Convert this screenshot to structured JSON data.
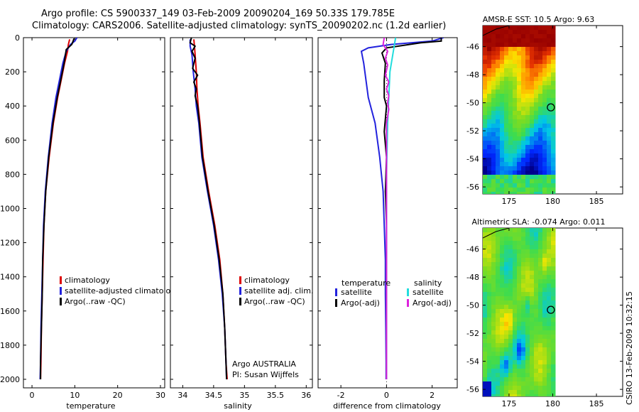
{
  "header": {
    "line1": "Argo profile: CS 5900337_149 03-Feb-2009 20090204_169 50.33S 179.785E",
    "line2": "Climatology: CARS2006. Satellite-adjusted climatology: synTS_20090202.nc (1.2d earlier)"
  },
  "footer": {
    "stamp": "CSIRO 13-Feb-2009 10:32:15"
  },
  "colors": {
    "climatology": "#dd0000",
    "satellite": "#2222dd",
    "argo": "#000000",
    "cyan": "#22dddd",
    "magenta": "#dd22dd"
  },
  "chart_data": [
    {
      "type": "line",
      "ylabel": "",
      "xlabel": "temperature",
      "xlim": [
        -2,
        31
      ],
      "ylim": [
        2050,
        0
      ],
      "xticks": [
        0,
        10,
        20,
        30
      ],
      "yticks": [
        0,
        200,
        400,
        600,
        800,
        1000,
        1200,
        1400,
        1600,
        1800,
        2000
      ],
      "legend": [
        "climatology",
        "satellite-adjusted climatology",
        "Argo(..raw -QC)"
      ],
      "series": [
        {
          "name": "climatology",
          "color": "climatology",
          "points": [
            [
              8.8,
              10
            ],
            [
              8.5,
              40
            ],
            [
              8.3,
              80
            ],
            [
              7.6,
              150
            ],
            [
              6.8,
              250
            ],
            [
              6.0,
              350
            ],
            [
              5.0,
              500
            ],
            [
              4.0,
              700
            ],
            [
              3.2,
              900
            ],
            [
              2.8,
              1100
            ],
            [
              2.6,
              1300
            ],
            [
              2.4,
              1500
            ],
            [
              2.2,
              1700
            ],
            [
              2.1,
              1900
            ],
            [
              2.0,
              2000
            ]
          ]
        },
        {
          "name": "satellite-adjusted climatology",
          "color": "satellite",
          "points": [
            [
              10.5,
              0
            ],
            [
              10.0,
              20
            ],
            [
              9.0,
              40
            ],
            [
              8.0,
              80
            ],
            [
              7.2,
              150
            ],
            [
              6.4,
              250
            ],
            [
              5.6,
              350
            ],
            [
              4.7,
              500
            ],
            [
              3.8,
              700
            ],
            [
              3.1,
              900
            ],
            [
              2.7,
              1100
            ],
            [
              2.5,
              1300
            ],
            [
              2.3,
              1500
            ],
            [
              2.1,
              1700
            ],
            [
              2.0,
              1900
            ],
            [
              1.9,
              2000
            ]
          ]
        },
        {
          "name": "Argo(..raw -QC)",
          "color": "argo",
          "points": [
            [
              9.8,
              5
            ],
            [
              9.6,
              20
            ],
            [
              9.3,
              40
            ],
            [
              8.0,
              70
            ],
            [
              7.5,
              150
            ],
            [
              6.7,
              250
            ],
            [
              5.9,
              350
            ],
            [
              4.9,
              500
            ],
            [
              3.9,
              700
            ],
            [
              3.2,
              900
            ],
            [
              2.8,
              1100
            ],
            [
              2.5,
              1300
            ],
            [
              2.4,
              1500
            ],
            [
              2.2,
              1700
            ],
            [
              2.0,
              1900
            ],
            [
              2.0,
              2000
            ]
          ]
        }
      ]
    },
    {
      "type": "line",
      "xlabel": "salinity",
      "xlim": [
        33.8,
        36.1
      ],
      "ylim": [
        2050,
        0
      ],
      "xticks": [
        34,
        34.5,
        35,
        35.5,
        36
      ],
      "legend": [
        "climatology",
        "satellite adj. clim.",
        "Argo(..raw -QC)"
      ],
      "annotations": [
        "Argo AUSTRALIA",
        "PI: Susan Wijffels"
      ],
      "series": [
        {
          "name": "climatology",
          "color": "climatology",
          "points": [
            [
              34.18,
              10
            ],
            [
              34.19,
              50
            ],
            [
              34.2,
              100
            ],
            [
              34.22,
              200
            ],
            [
              34.23,
              300
            ],
            [
              34.25,
              400
            ],
            [
              34.28,
              500
            ],
            [
              34.33,
              700
            ],
            [
              34.42,
              900
            ],
            [
              34.52,
              1100
            ],
            [
              34.6,
              1300
            ],
            [
              34.65,
              1500
            ],
            [
              34.68,
              1700
            ],
            [
              34.7,
              1900
            ],
            [
              34.72,
              2000
            ]
          ]
        },
        {
          "name": "satellite adj. clim.",
          "color": "satellite",
          "points": [
            [
              34.12,
              10
            ],
            [
              34.12,
              50
            ],
            [
              34.15,
              100
            ],
            [
              34.17,
              200
            ],
            [
              34.2,
              300
            ],
            [
              34.22,
              400
            ],
            [
              34.26,
              500
            ],
            [
              34.31,
              700
            ],
            [
              34.4,
              900
            ],
            [
              34.5,
              1100
            ],
            [
              34.58,
              1300
            ],
            [
              34.64,
              1500
            ],
            [
              34.68,
              1700
            ],
            [
              34.7,
              1900
            ],
            [
              34.71,
              2000
            ]
          ]
        },
        {
          "name": "Argo(..raw -QC)",
          "color": "argo",
          "points": [
            [
              34.14,
              0
            ],
            [
              34.12,
              30
            ],
            [
              34.2,
              50
            ],
            [
              34.15,
              80
            ],
            [
              34.2,
              120
            ],
            [
              34.16,
              180
            ],
            [
              34.24,
              220
            ],
            [
              34.18,
              260
            ],
            [
              34.22,
              300
            ],
            [
              34.2,
              340
            ],
            [
              34.24,
              400
            ],
            [
              34.27,
              500
            ],
            [
              34.32,
              700
            ],
            [
              34.41,
              900
            ],
            [
              34.51,
              1100
            ],
            [
              34.59,
              1300
            ],
            [
              34.65,
              1500
            ],
            [
              34.68,
              1700
            ],
            [
              34.7,
              1900
            ],
            [
              34.71,
              2000
            ]
          ]
        }
      ]
    },
    {
      "type": "line",
      "xlabel": "difference from climatology",
      "xlim": [
        -3.0,
        3.1
      ],
      "ylim": [
        2050,
        0
      ],
      "xticks": [
        -2,
        0,
        2
      ],
      "legend_left_title": "temperature",
      "legend_right_title": "salinity",
      "legend": [
        "satellite",
        "Argo(-adj)",
        "satellite",
        "Argo(-adj)"
      ],
      "series": [
        {
          "name": "temperature satellite",
          "color": "satellite",
          "points": [
            [
              2.5,
              0
            ],
            [
              2.0,
              20
            ],
            [
              0.2,
              40
            ],
            [
              -0.8,
              60
            ],
            [
              -1.1,
              80
            ],
            [
              -1.0,
              150
            ],
            [
              -0.9,
              250
            ],
            [
              -0.8,
              350
            ],
            [
              -0.5,
              500
            ],
            [
              -0.3,
              700
            ],
            [
              -0.15,
              900
            ],
            [
              -0.1,
              1100
            ],
            [
              -0.05,
              1300
            ],
            [
              -0.05,
              1500
            ],
            [
              -0.03,
              1700
            ],
            [
              -0.02,
              1900
            ],
            [
              -0.02,
              2000
            ]
          ]
        },
        {
          "name": "temperature Argo(-adj)",
          "color": "argo",
          "points": [
            [
              2.4,
              0
            ],
            [
              2.4,
              20
            ],
            [
              1.5,
              30
            ],
            [
              0.0,
              60
            ],
            [
              -0.2,
              90
            ],
            [
              -0.05,
              150
            ],
            [
              -0.1,
              250
            ],
            [
              -0.1,
              350
            ],
            [
              0.0,
              400
            ],
            [
              -0.1,
              550
            ],
            [
              0.0,
              700
            ],
            [
              -0.05,
              900
            ],
            [
              0.0,
              1100
            ],
            [
              0.0,
              1300
            ],
            [
              0.0,
              1500
            ],
            [
              0.0,
              1700
            ],
            [
              0.0,
              1900
            ],
            [
              0.0,
              2000
            ]
          ]
        },
        {
          "name": "salinity satellite",
          "color": "cyan",
          "points": [
            [
              0.4,
              0
            ],
            [
              0.35,
              40
            ],
            [
              0.15,
              200
            ],
            [
              0.05,
              500
            ],
            [
              0.0,
              800
            ],
            [
              0.0,
              1100
            ],
            [
              0.0,
              1400
            ],
            [
              0.0,
              1700
            ],
            [
              0.0,
              2000
            ]
          ]
        },
        {
          "name": "salinity Argo(-adj)",
          "color": "magenta",
          "points": [
            [
              -0.1,
              0
            ],
            [
              -0.15,
              40
            ],
            [
              0.05,
              80
            ],
            [
              -0.05,
              120
            ],
            [
              0.05,
              160
            ],
            [
              -0.05,
              220
            ],
            [
              0.1,
              260
            ],
            [
              0.0,
              300
            ],
            [
              0.1,
              340
            ],
            [
              0.05,
              380
            ],
            [
              0.1,
              420
            ],
            [
              0.0,
              500
            ],
            [
              0.0,
              800
            ],
            [
              0.0,
              1100
            ],
            [
              0.0,
              1500
            ],
            [
              0.0,
              2000
            ]
          ]
        }
      ]
    },
    {
      "type": "heatmap",
      "title": "AMSR-E SST: 10.5 Argo: 9.63",
      "xlim": [
        172,
        188
      ],
      "ylim": [
        -56.5,
        -44.5
      ],
      "xticks": [
        175,
        180,
        185
      ],
      "yticks": [
        -46,
        -48,
        -50,
        -52,
        -54,
        -56
      ],
      "marker": {
        "lon": 179.785,
        "lat": -50.33
      }
    },
    {
      "type": "heatmap",
      "title": "Altimetric SLA: -0.074 Argo: 0.011",
      "xlim": [
        172,
        188
      ],
      "ylim": [
        -56.5,
        -44.5
      ],
      "xticks": [
        175,
        180,
        185
      ],
      "yticks": [
        -46,
        -48,
        -50,
        -52,
        -54,
        -56
      ],
      "marker": {
        "lon": 179.785,
        "lat": -50.33
      }
    }
  ]
}
